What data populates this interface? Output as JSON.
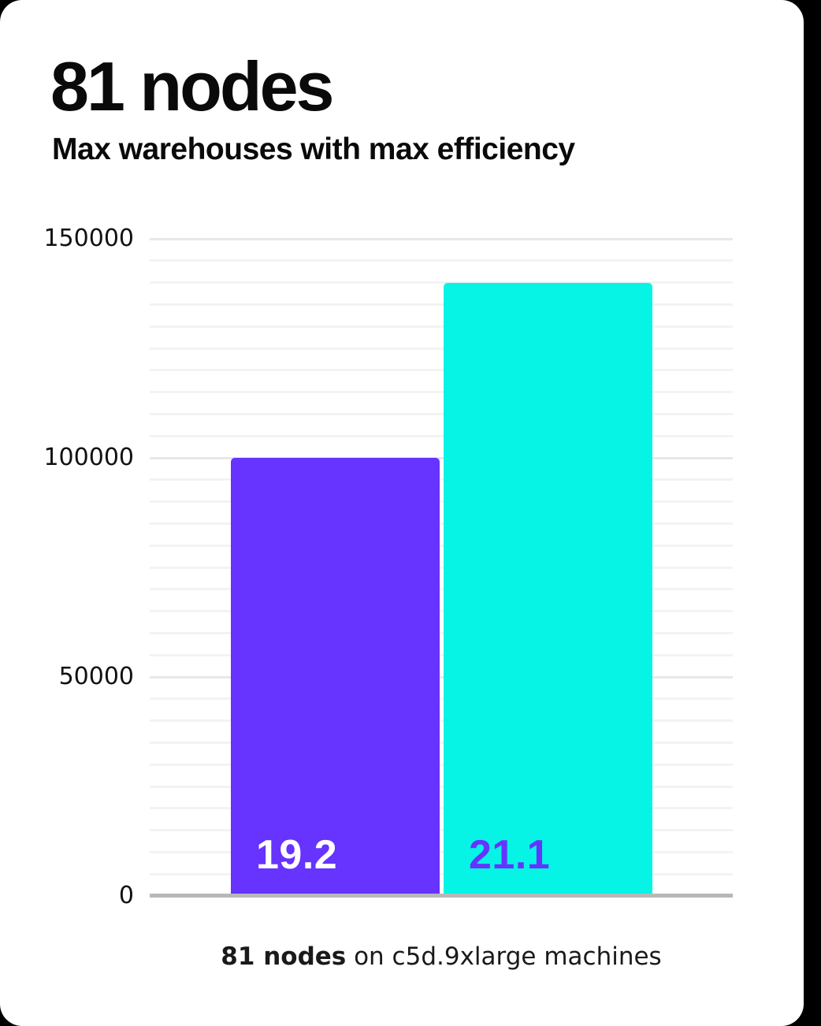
{
  "card": {
    "title": "81 nodes",
    "subtitle": "Max warehouses with max efficiency",
    "caption_bold": "81 nodes",
    "caption_rest": " on c5d.9xlarge machines"
  },
  "colors": {
    "background": "#000000",
    "card_background": "#ffffff",
    "text": "#0a0a0a",
    "bar_purple": "#6633ff",
    "bar_cyan": "#05f4e6",
    "bar_label_on_purple": "#ffffff",
    "bar_label_on_cyan": "#6633ff",
    "gridline_minor": "#f3f3f3",
    "gridline_major": "#e8e8e8",
    "axis_baseline": "#b8b8b8"
  },
  "chart_data": {
    "type": "bar",
    "title": "81 nodes",
    "subtitle": "Max warehouses with max efficiency",
    "categories": [
      "19.2",
      "21.1"
    ],
    "values": [
      100000,
      140000
    ],
    "bar_colors": [
      "#6633ff",
      "#05f4e6"
    ],
    "bar_label_colors": [
      "#ffffff",
      "#6633ff"
    ],
    "xlabel": "",
    "ylabel": "",
    "ylim": [
      0,
      150000
    ],
    "ytick_values": [
      0,
      50000,
      100000,
      150000
    ],
    "ytick_labels": [
      "0",
      "50000",
      "100000",
      "150000"
    ],
    "minor_grid_step": 5000,
    "major_grid_step": 50000,
    "grid": true,
    "legend": false,
    "caption": "81 nodes on c5d.9xlarge machines"
  }
}
